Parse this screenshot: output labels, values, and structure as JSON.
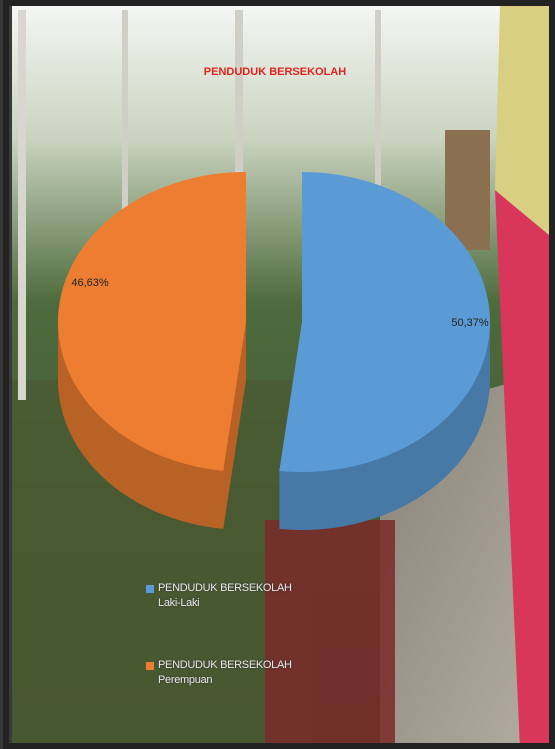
{
  "chart_data": {
    "type": "pie",
    "title": "PENDUDUK BERSEKOLAH",
    "categories": [
      "PENDUDUK BERSEKOLAH Laki-Laki",
      "PENDUDUK BERSEKOLAH Perempuan"
    ],
    "values": [
      50.37,
      46.63
    ],
    "value_labels": [
      "50,37%",
      "46,63%"
    ],
    "colors": [
      "#5b9bd5",
      "#ed7d31"
    ],
    "legend": "bottom-left"
  }
}
